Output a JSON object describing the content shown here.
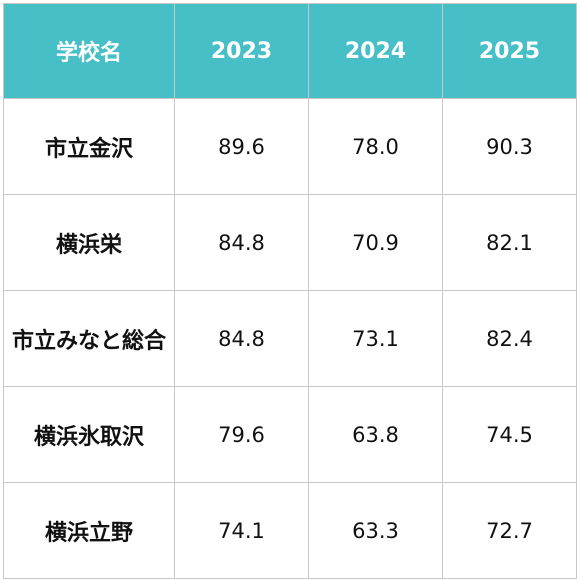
{
  "table": {
    "header": {
      "school_col": "学校名",
      "years": [
        "2023",
        "2024",
        "2025"
      ]
    },
    "rows": [
      {
        "school": "市立金沢",
        "values": [
          "89.6",
          "78.0",
          "90.3"
        ]
      },
      {
        "school": "横浜栄",
        "values": [
          "84.8",
          "70.9",
          "82.1"
        ]
      },
      {
        "school": "市立みなと総合",
        "values": [
          "84.8",
          "73.1",
          "82.4"
        ]
      },
      {
        "school": "横浜氷取沢",
        "values": [
          "79.6",
          "63.8",
          "74.5"
        ]
      },
      {
        "school": "横浜立野",
        "values": [
          "74.1",
          "63.3",
          "72.7"
        ]
      }
    ],
    "colors": {
      "header_bg": "#46bfc6",
      "header_text": "#ffffff",
      "border": "#c7c7c7"
    }
  }
}
